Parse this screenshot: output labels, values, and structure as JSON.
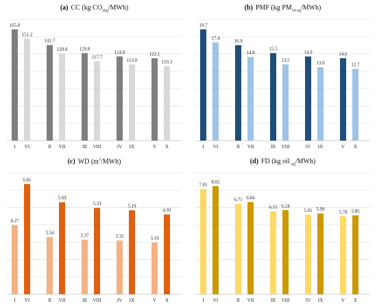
{
  "chart_data": [
    {
      "type": "bar",
      "panel_letter": "(a)",
      "title": "CC (kg CO2eq/MWh)",
      "title_main": "CC (kg CO",
      "title_sub": "2eq",
      "title_tail": "/MWh)",
      "categories": [
        "I",
        "VI",
        "II",
        "VII",
        "III",
        "VIII",
        "IV",
        "IX",
        "V",
        "X"
      ],
      "values": [
        165.0,
        151.2,
        141.7,
        129.0,
        129.8,
        117.7,
        124.8,
        113.0,
        122.1,
        110.3
      ],
      "labels": [
        "165.0",
        "151.2",
        "141.7",
        "129.0",
        "129.8",
        "117.7",
        "124.8",
        "113.0",
        "122.1",
        "110.3"
      ],
      "colors": [
        "#7f7f7f",
        "#d9d9d9"
      ],
      "ylim": [
        0,
        180
      ],
      "grid": true,
      "xlabel": "",
      "ylabel": ""
    },
    {
      "type": "bar",
      "panel_letter": "(b)",
      "title": "PMF (kg PM10 eq/MWh)",
      "title_main": "PMF (kg PM",
      "title_sub": "10 eq",
      "title_tail": "/MWh)",
      "categories": [
        "I",
        "VI",
        "II",
        "VII",
        "III",
        "VIII",
        "IV",
        "IX",
        "V",
        "X"
      ],
      "values": [
        19.7,
        17.4,
        16.9,
        14.8,
        15.5,
        13.5,
        14.9,
        13.0,
        14.6,
        12.7
      ],
      "labels": [
        "19.7",
        "17.4",
        "16.9",
        "14.8",
        "15.5",
        "13.5",
        "14.9",
        "13.0",
        "14.6",
        "12.7"
      ],
      "colors": [
        "#1f4e79",
        "#9dc3e6"
      ],
      "ylim": [
        0,
        21.5
      ],
      "grid": true,
      "xlabel": "",
      "ylabel": ""
    },
    {
      "type": "bar",
      "panel_letter": "(c)",
      "title": "WD (m3/MWh)",
      "title_main": "WD (m",
      "title_sup": "3",
      "title_tail": "/MWh)",
      "categories": [
        "I",
        "VI",
        "II",
        "VII",
        "III",
        "VIII",
        "IV",
        "IX",
        "V",
        "X"
      ],
      "values": [
        4.27,
        6.81,
        3.54,
        5.69,
        3.37,
        5.33,
        3.32,
        5.19,
        3.19,
        4.93
      ],
      "labels": [
        "4.27",
        "6.81",
        "3.54",
        "5.69",
        "3.37",
        "5.33",
        "3.32",
        "5.19",
        "3.19",
        "4.93"
      ],
      "colors": [
        "#f4b183",
        "#e06010"
      ],
      "ylim": [
        0,
        7.5
      ],
      "grid": true,
      "xlabel": "",
      "ylabel": ""
    },
    {
      "type": "bar",
      "panel_letter": "(d)",
      "title": "FD (kg oil eq/MWh)",
      "title_main": "FD (kg oil ",
      "title_sub": "eq",
      "title_tail": "/MWh)",
      "categories": [
        "I",
        "VI",
        "II",
        "VII",
        "III",
        "VIII",
        "IV",
        "IX",
        "V",
        "X"
      ],
      "values": [
        7.81,
        8.02,
        6.71,
        6.84,
        6.15,
        6.24,
        5.91,
        5.99,
        5.78,
        5.85
      ],
      "labels": [
        "7.81",
        "8.02",
        "6.71",
        "6.84",
        "6.15",
        "6.24",
        "5.91",
        "5.99",
        "5.78",
        "5.85"
      ],
      "colors": [
        "#ffd966",
        "#cc9900"
      ],
      "ylim": [
        0,
        9
      ],
      "grid": true,
      "xlabel": "",
      "ylabel": ""
    }
  ]
}
